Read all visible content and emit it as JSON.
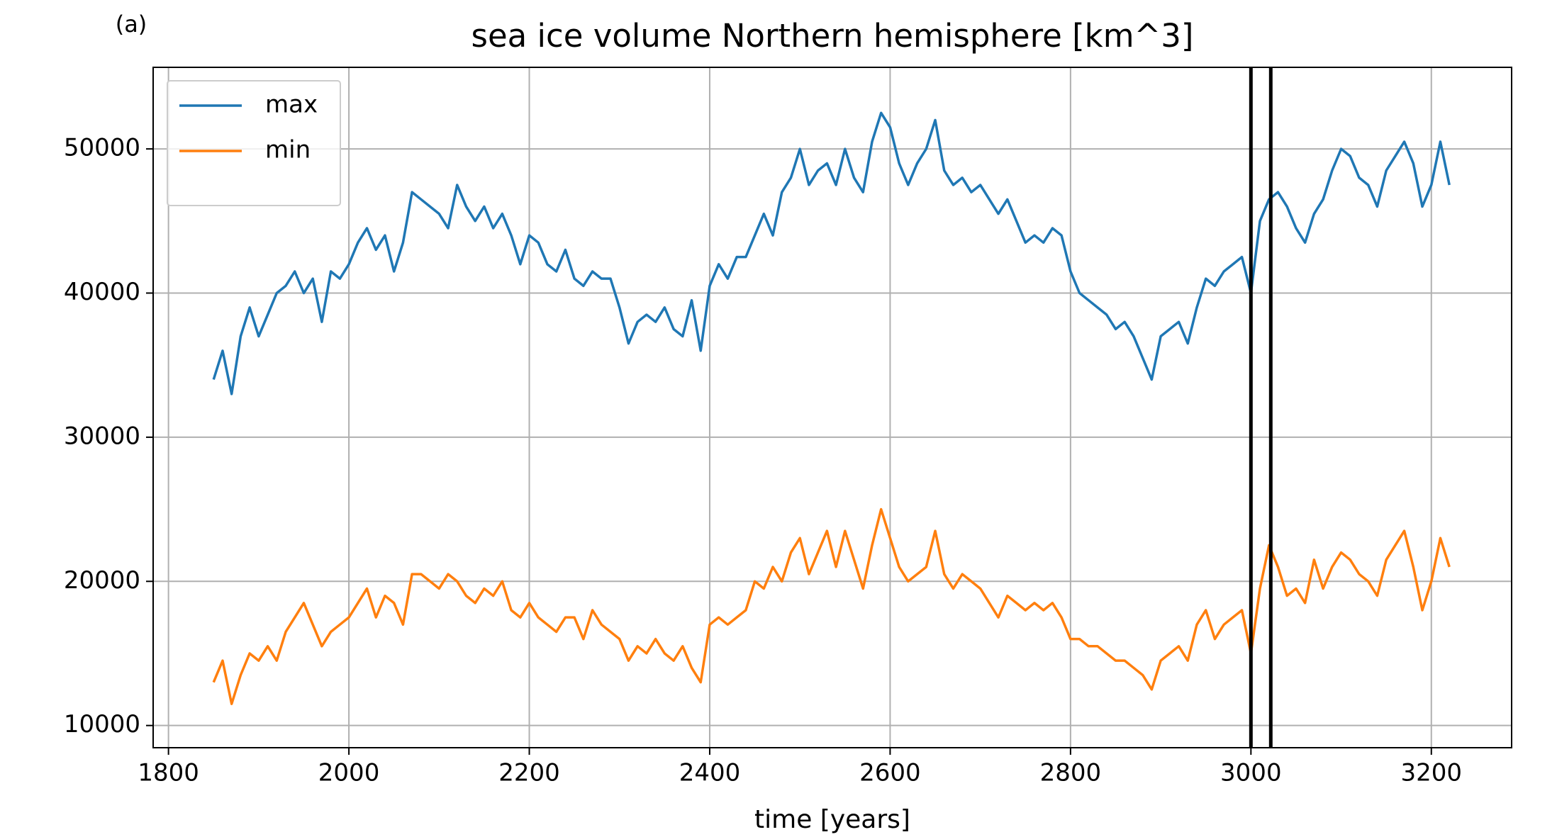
{
  "chart_data": {
    "type": "line",
    "panel_label": "(a)",
    "title": "sea ice volume Northern hemisphere [km^3]",
    "xlabel": "time [years]",
    "x": [
      1850,
      1860,
      1870,
      1880,
      1890,
      1900,
      1910,
      1920,
      1930,
      1940,
      1950,
      1960,
      1970,
      1980,
      1990,
      2000,
      2010,
      2020,
      2030,
      2040,
      2050,
      2060,
      2070,
      2080,
      2090,
      2100,
      2110,
      2120,
      2130,
      2140,
      2150,
      2160,
      2170,
      2180,
      2190,
      2200,
      2210,
      2220,
      2230,
      2240,
      2250,
      2260,
      2270,
      2280,
      2290,
      2300,
      2310,
      2320,
      2330,
      2340,
      2350,
      2360,
      2370,
      2380,
      2390,
      2400,
      2410,
      2420,
      2430,
      2440,
      2450,
      2460,
      2470,
      2480,
      2490,
      2500,
      2510,
      2520,
      2530,
      2540,
      2550,
      2560,
      2570,
      2580,
      2590,
      2600,
      2610,
      2620,
      2630,
      2640,
      2650,
      2660,
      2670,
      2680,
      2690,
      2700,
      2710,
      2720,
      2730,
      2740,
      2750,
      2760,
      2770,
      2780,
      2790,
      2800,
      2810,
      2820,
      2830,
      2840,
      2850,
      2860,
      2870,
      2880,
      2890,
      2900,
      2910,
      2920,
      2930,
      2940,
      2950,
      2960,
      2970,
      2980,
      2990,
      3000,
      3010,
      3020,
      3030,
      3040,
      3050,
      3060,
      3070,
      3080,
      3090,
      3100,
      3110,
      3120,
      3130,
      3140,
      3150,
      3160,
      3170,
      3180,
      3190,
      3200,
      3210,
      3220
    ],
    "series": [
      {
        "name": "max",
        "color": "#1f77b4",
        "values": [
          34000,
          36000,
          33000,
          37000,
          39000,
          37000,
          38500,
          40000,
          40500,
          41500,
          40000,
          41000,
          38000,
          41500,
          41000,
          42000,
          43500,
          44500,
          43000,
          44000,
          41500,
          43500,
          47000,
          46500,
          46000,
          45500,
          44500,
          47500,
          46000,
          45000,
          46000,
          44500,
          45500,
          44000,
          42000,
          44000,
          43500,
          42000,
          41500,
          43000,
          41000,
          40500,
          41500,
          41000,
          41000,
          39000,
          36500,
          38000,
          38500,
          38000,
          39000,
          37500,
          37000,
          39500,
          36000,
          40500,
          42000,
          41000,
          42500,
          42500,
          44000,
          45500,
          44000,
          47000,
          48000,
          50000,
          47500,
          48500,
          49000,
          47500,
          50000,
          48000,
          47000,
          50500,
          52500,
          51500,
          49000,
          47500,
          49000,
          50000,
          52000,
          48500,
          47500,
          48000,
          47000,
          47500,
          46500,
          45500,
          46500,
          45000,
          43500,
          44000,
          43500,
          44500,
          44000,
          41500,
          40000,
          39500,
          39000,
          38500,
          37500,
          38000,
          37000,
          35500,
          34000,
          37000,
          37500,
          38000,
          36500,
          39000,
          41000,
          40500,
          41500,
          42000,
          42500,
          40000,
          45000,
          46500,
          47000,
          46000,
          44500,
          43500,
          45500,
          46500,
          48500,
          50000,
          49500,
          48000,
          47500,
          46000,
          48500,
          49500,
          50500,
          49000,
          46000,
          47500,
          50500,
          47500
        ]
      },
      {
        "name": "min",
        "color": "#ff7f0e",
        "values": [
          13000,
          14500,
          11500,
          13500,
          15000,
          14500,
          15500,
          14500,
          16500,
          17500,
          18500,
          17000,
          15500,
          16500,
          17000,
          17500,
          18500,
          19500,
          17500,
          19000,
          18500,
          17000,
          20500,
          20500,
          20000,
          19500,
          20500,
          20000,
          19000,
          18500,
          19500,
          19000,
          20000,
          18000,
          17500,
          18500,
          17500,
          17000,
          16500,
          17500,
          17500,
          16000,
          18000,
          17000,
          16500,
          16000,
          14500,
          15500,
          15000,
          16000,
          15000,
          14500,
          15500,
          14000,
          13000,
          17000,
          17500,
          17000,
          17500,
          18000,
          20000,
          19500,
          21000,
          20000,
          22000,
          23000,
          20500,
          22000,
          23500,
          21000,
          23500,
          21500,
          19500,
          22500,
          25000,
          23000,
          21000,
          20000,
          20500,
          21000,
          23500,
          20500,
          19500,
          20500,
          20000,
          19500,
          18500,
          17500,
          19000,
          18500,
          18000,
          18500,
          18000,
          18500,
          17500,
          16000,
          16000,
          15500,
          15500,
          15000,
          14500,
          14500,
          14000,
          13500,
          12500,
          14500,
          15000,
          15500,
          14500,
          17000,
          18000,
          16000,
          17000,
          17500,
          18000,
          15000,
          19500,
          22500,
          21000,
          19000,
          19500,
          18500,
          21500,
          19500,
          21000,
          22000,
          21500,
          20500,
          20000,
          19000,
          21500,
          22500,
          23500,
          21000,
          18000,
          20000,
          23000,
          21000
        ]
      }
    ],
    "vlines": [
      3000,
      3022
    ],
    "vline_color": "#000000",
    "xlim": [
      1783,
      3289
    ],
    "ylim": [
      8460,
      55660
    ],
    "xticks": [
      1800,
      2000,
      2200,
      2400,
      2600,
      2800,
      3000,
      3200
    ],
    "yticks": [
      10000,
      20000,
      30000,
      40000,
      50000
    ],
    "grid": true,
    "legend": "upper left"
  }
}
